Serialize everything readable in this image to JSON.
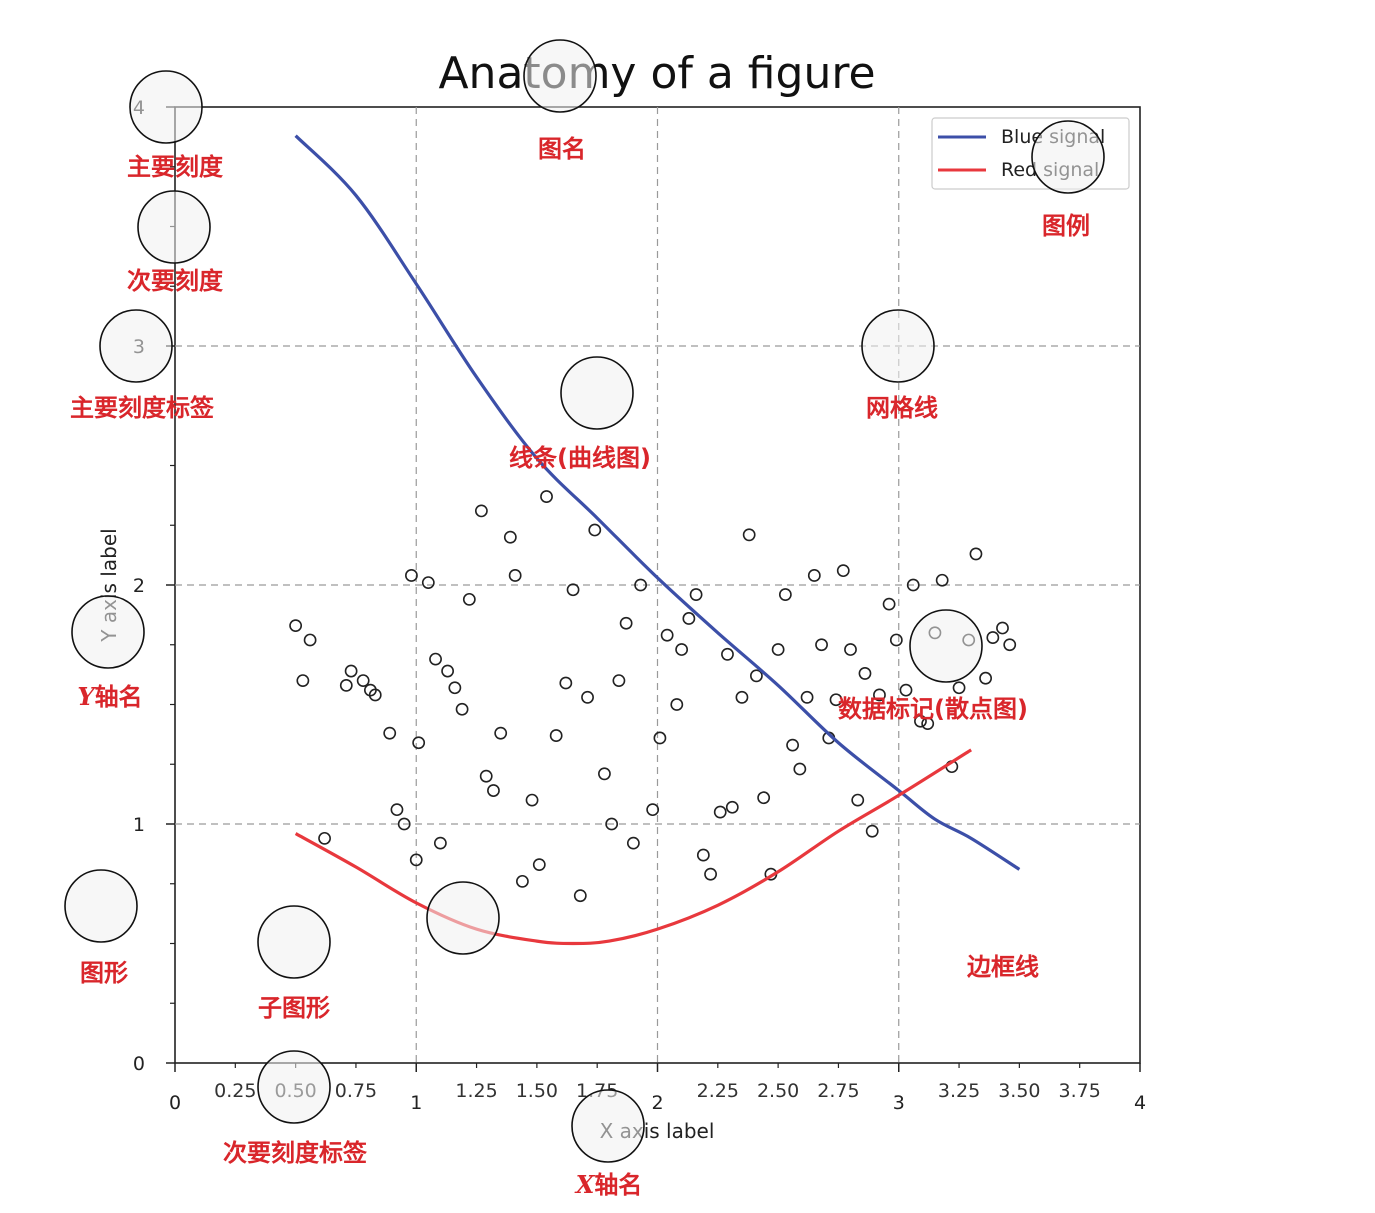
{
  "chart_data": {
    "type": "line",
    "title": "Anatomy of a figure",
    "xlabel": "X axis label",
    "ylabel": "Y axis label",
    "xlim": [
      0,
      4
    ],
    "ylim": [
      0,
      4
    ],
    "grid": true,
    "legend_position": "top-right",
    "major_xticks": [
      "0",
      "1",
      "2",
      "3",
      "4"
    ],
    "major_yticks": [
      "0",
      "1",
      "2",
      "3",
      "4"
    ],
    "minor_xticks": [
      "0.25",
      "0.50",
      "0.75",
      "1.25",
      "1.50",
      "1.75",
      "2.25",
      "2.50",
      "2.75",
      "3.25",
      "3.50",
      "3.75"
    ],
    "series": [
      {
        "name": "Blue signal",
        "color": "#3c4fa8",
        "x": [
          0.5,
          0.75,
          1.0,
          1.25,
          1.5,
          1.75,
          2.0,
          2.25,
          2.5,
          2.75,
          3.0,
          3.15,
          3.3,
          3.5
        ],
        "y": [
          3.88,
          3.63,
          3.26,
          2.87,
          2.53,
          2.28,
          2.03,
          1.8,
          1.58,
          1.34,
          1.14,
          1.02,
          0.94,
          0.81
        ]
      },
      {
        "name": "Red signal",
        "color": "#e8383d",
        "x": [
          0.5,
          0.75,
          1.0,
          1.25,
          1.5,
          1.65,
          1.8,
          2.0,
          2.25,
          2.5,
          2.75,
          3.0,
          3.3
        ],
        "y": [
          0.96,
          0.82,
          0.67,
          0.56,
          0.51,
          0.5,
          0.51,
          0.56,
          0.66,
          0.8,
          0.97,
          1.12,
          1.31
        ]
      }
    ],
    "scatter": {
      "name": "data markers",
      "x": [
        0.5,
        0.56,
        0.53,
        0.62,
        0.71,
        0.73,
        0.78,
        0.81,
        0.83,
        0.89,
        0.92,
        0.95,
        0.98,
        1.0,
        1.01,
        1.05,
        1.08,
        1.1,
        1.13,
        1.16,
        1.19,
        1.22,
        1.27,
        1.29,
        1.32,
        1.35,
        1.39,
        1.41,
        1.44,
        1.48,
        1.51,
        1.54,
        1.58,
        1.62,
        1.65,
        1.68,
        1.71,
        1.74,
        1.78,
        1.81,
        1.84,
        1.87,
        1.9,
        1.93,
        1.98,
        2.01,
        2.04,
        2.08,
        2.1,
        2.13,
        2.16,
        2.19,
        2.22,
        2.26,
        2.29,
        2.31,
        2.35,
        2.38,
        2.41,
        2.44,
        2.47,
        2.5,
        2.53,
        2.56,
        2.59,
        2.62,
        2.65,
        2.68,
        2.71,
        2.74,
        2.77,
        2.8,
        2.83,
        2.86,
        2.89,
        2.92,
        2.96,
        2.99,
        3.03,
        3.06,
        3.09,
        3.12,
        3.15,
        3.18,
        3.22,
        3.25,
        3.29,
        3.32,
        3.36,
        3.39,
        3.43,
        3.46
      ],
      "y": [
        1.83,
        1.77,
        1.6,
        0.94,
        1.58,
        1.64,
        1.6,
        1.56,
        1.54,
        1.38,
        1.06,
        1.0,
        2.04,
        0.85,
        1.34,
        2.01,
        1.69,
        0.92,
        1.64,
        1.57,
        1.48,
        1.94,
        2.31,
        1.2,
        1.14,
        1.38,
        2.2,
        2.04,
        0.76,
        1.1,
        0.83,
        2.37,
        1.37,
        1.59,
        1.98,
        0.7,
        1.53,
        2.23,
        1.21,
        1.0,
        1.6,
        1.84,
        0.92,
        2.0,
        1.06,
        1.36,
        1.79,
        1.5,
        1.73,
        1.86,
        1.96,
        0.87,
        0.79,
        1.05,
        1.71,
        1.07,
        1.53,
        2.21,
        1.62,
        1.11,
        0.79,
        1.73,
        1.96,
        1.33,
        1.23,
        1.53,
        2.04,
        1.75,
        1.36,
        1.52,
        2.06,
        1.73,
        1.1,
        1.63,
        0.97,
        1.54,
        1.92,
        1.77,
        1.56,
        2.0,
        1.43,
        1.42,
        1.8,
        2.02,
        1.24,
        1.57,
        1.77,
        2.13,
        1.61,
        1.78,
        1.82,
        1.75
      ]
    }
  },
  "annotations": {
    "major_tick": "主要刻度",
    "minor_tick": "次要刻度",
    "major_tick_label": "主要刻度标签",
    "y_axis_name": "Y",
    "y_axis_name_suffix": "轴名",
    "figure": "图形",
    "subplot": "子图形",
    "minor_tick_label": "次要刻度标签",
    "x_axis_name": "X",
    "x_axis_name_suffix": "轴名",
    "title_name": "图名",
    "line_plot": "线条(曲线图)",
    "grid_lines": "网格线",
    "legend": "图例",
    "markers": "数据标记(散点图)",
    "spines": "边框线"
  }
}
